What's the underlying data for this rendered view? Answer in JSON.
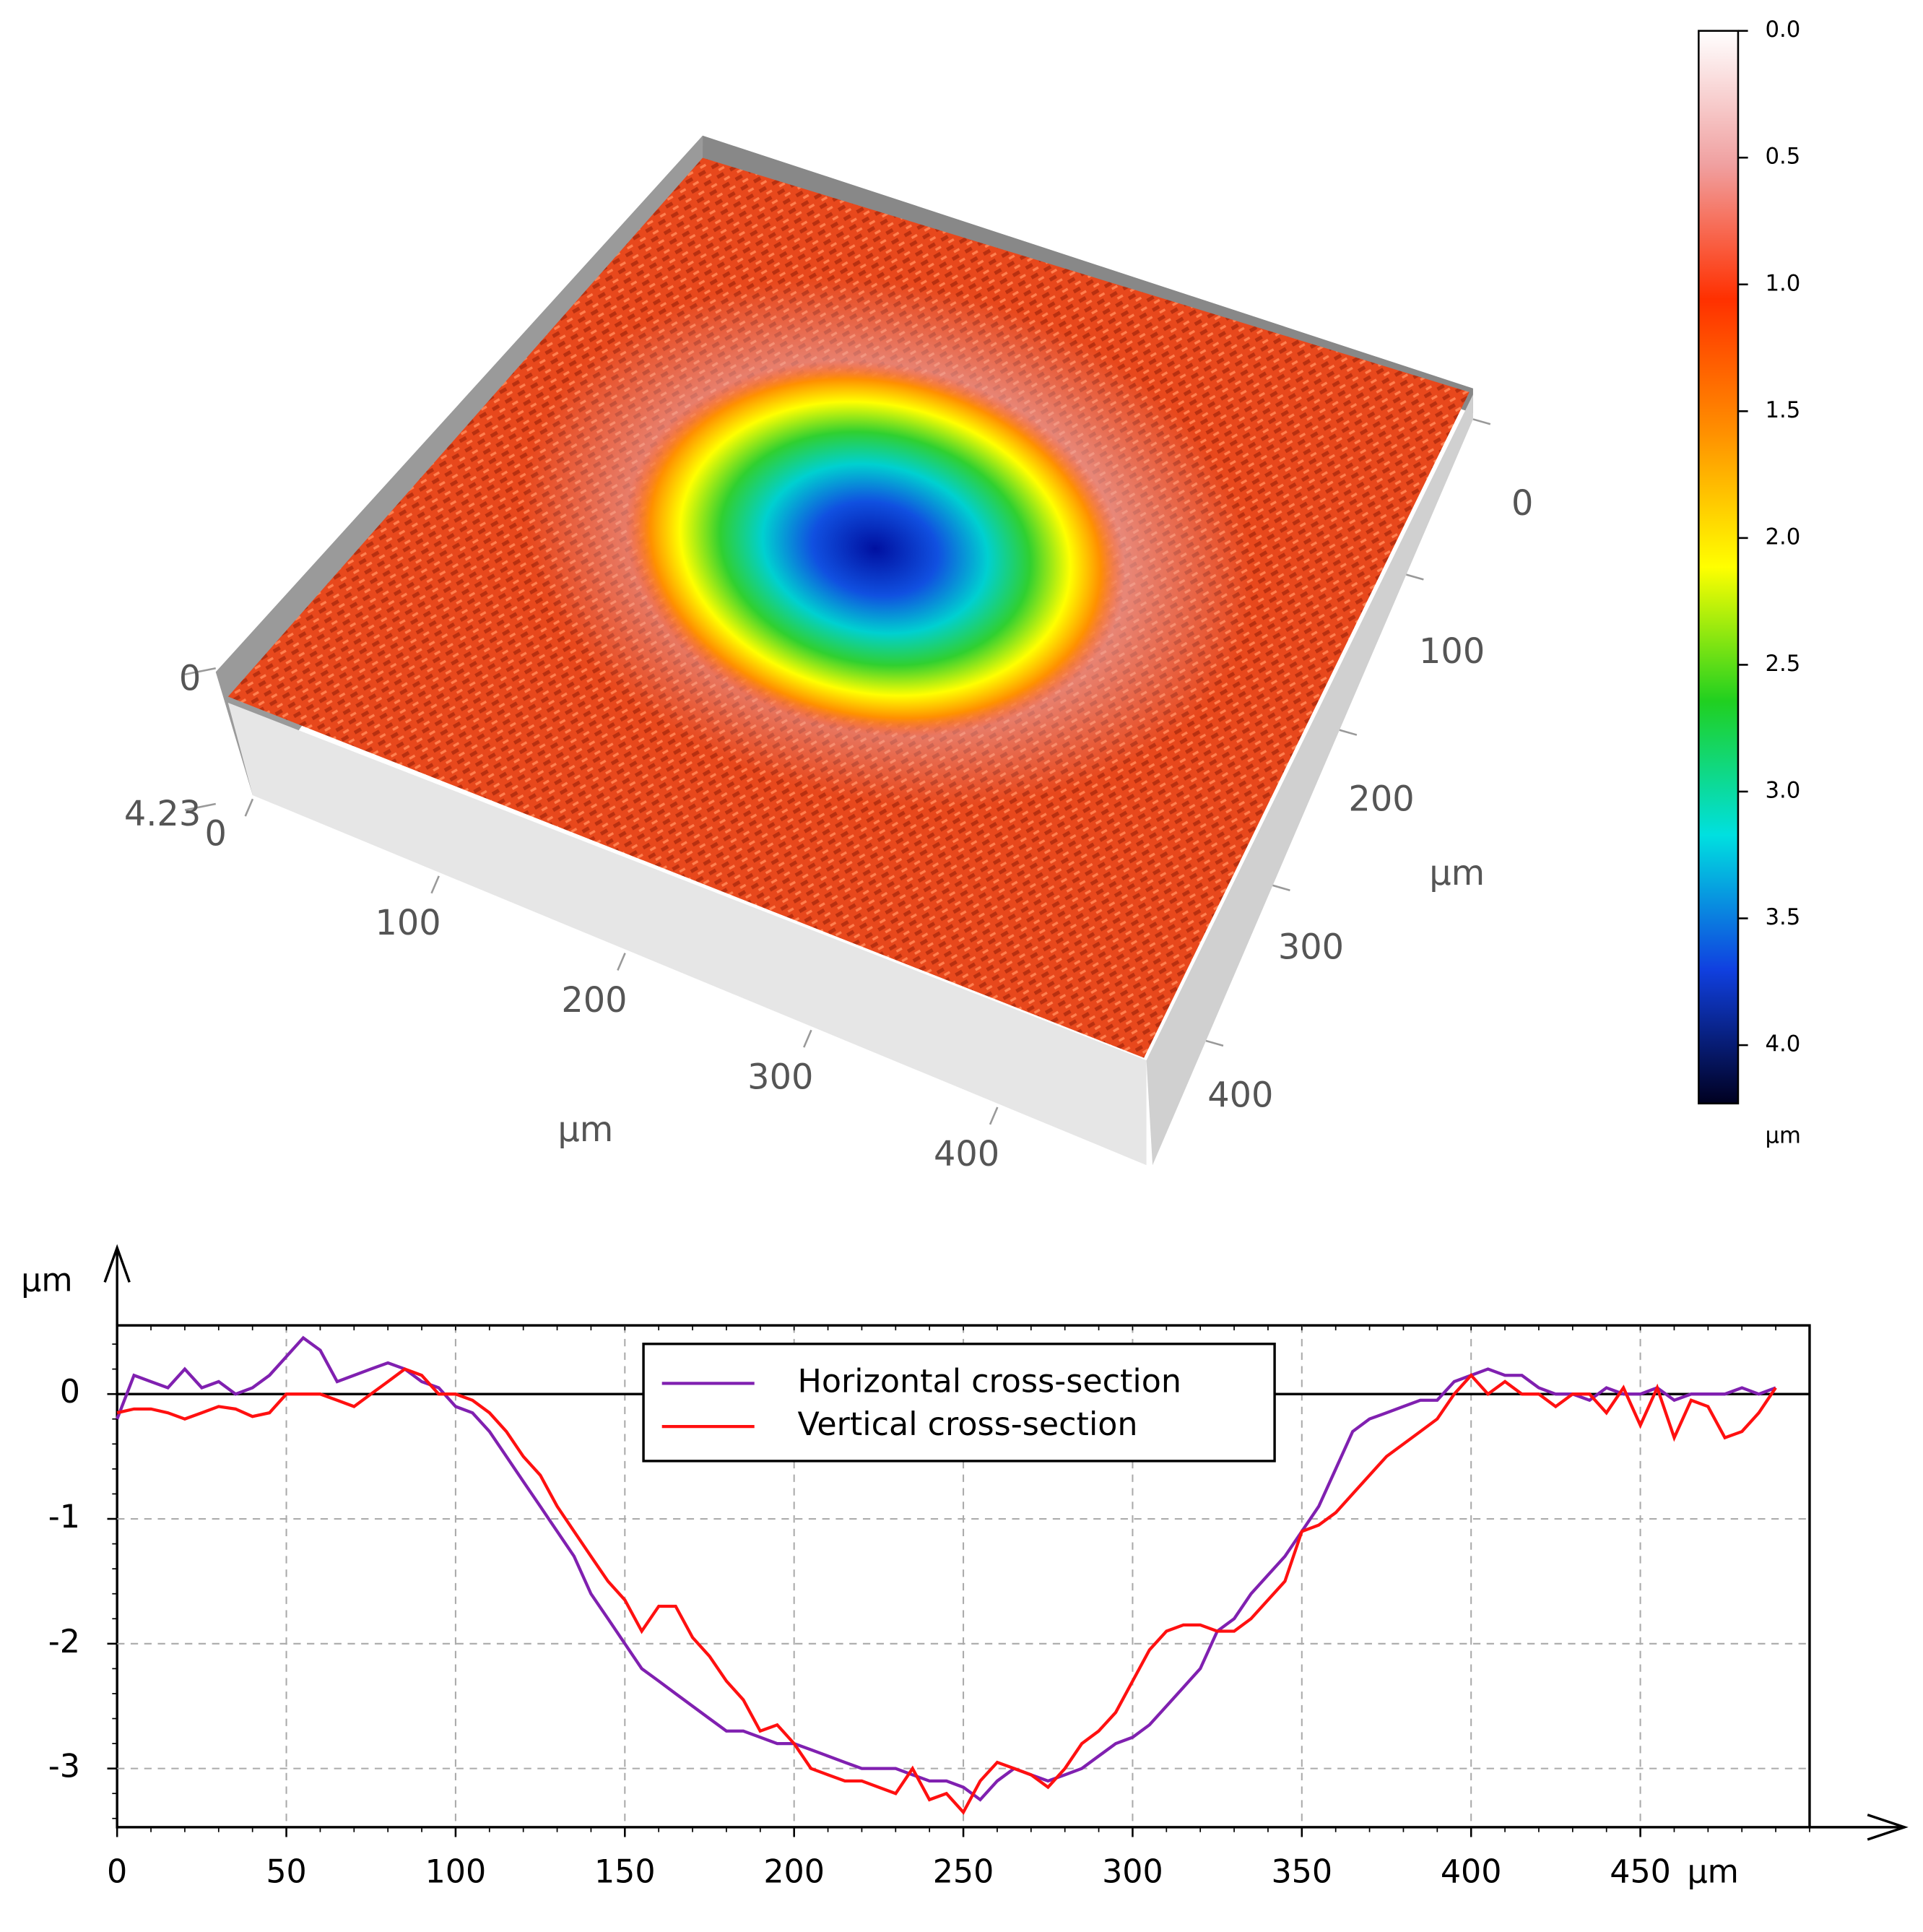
{
  "chart_data": [
    {
      "type": "surface3d",
      "x_label": "µm",
      "xticks": [
        0,
        100,
        200,
        300,
        400
      ],
      "y_label": "µm",
      "yticks": [
        0,
        100,
        200,
        300,
        400
      ],
      "zticks": [
        0,
        4.23
      ],
      "colorbar": {
        "lim": [
          0,
          4.23
        ],
        "label": "µm",
        "ticks": [
          {
            "value": 0,
            "label": "0.0"
          },
          {
            "value": 0.5,
            "label": "0.5"
          },
          {
            "value": 1,
            "label": "1.0"
          },
          {
            "value": 1.5,
            "label": "1.5"
          },
          {
            "value": 2,
            "label": "2.0"
          },
          {
            "value": 2.5,
            "label": "2.5"
          },
          {
            "value": 3,
            "label": "3.0"
          },
          {
            "value": 3.5,
            "label": "3.5"
          },
          {
            "value": 4,
            "label": "4.0"
          }
        ],
        "colors": [
          "#ffffff",
          "#f0a0a0",
          "#ff3000",
          "#ff9000",
          "#ffff00",
          "#20d020",
          "#00e0e0",
          "#1040e0",
          "#000020"
        ]
      }
    },
    {
      "type": "line",
      "y_label": "µm",
      "x_label": "µm",
      "xlim": [
        0,
        500
      ],
      "ylim": [
        -3.47,
        0.55
      ],
      "xticks": [
        0,
        50,
        100,
        150,
        200,
        250,
        300,
        350,
        400,
        450
      ],
      "yticks": [
        0,
        -1,
        -2,
        -3
      ],
      "grid": true,
      "legend": "top",
      "x": [
        0,
        5,
        10,
        15,
        20,
        25,
        30,
        35,
        40,
        45,
        50,
        55,
        60,
        65,
        70,
        75,
        80,
        85,
        90,
        95,
        100,
        105,
        110,
        115,
        120,
        125,
        130,
        135,
        140,
        145,
        150,
        155,
        160,
        165,
        170,
        175,
        180,
        185,
        190,
        195,
        200,
        205,
        210,
        215,
        220,
        225,
        230,
        235,
        240,
        245,
        250,
        255,
        260,
        265,
        270,
        275,
        280,
        285,
        290,
        295,
        300,
        305,
        310,
        315,
        320,
        325,
        330,
        335,
        340,
        345,
        350,
        355,
        360,
        365,
        370,
        375,
        380,
        385,
        390,
        395,
        400,
        405,
        410,
        415,
        420,
        425,
        430,
        435,
        440,
        445,
        450,
        455,
        460,
        465,
        470,
        475,
        480,
        485,
        490
      ],
      "series": [
        {
          "name": "Horizontal cross-section",
          "color": "#8020b0",
          "values": [
            -0.2,
            0.15,
            0.1,
            0.05,
            0.2,
            0.05,
            0.1,
            0.0,
            0.05,
            0.15,
            0.3,
            0.45,
            0.35,
            0.1,
            0.15,
            0.2,
            0.25,
            0.2,
            0.1,
            0.05,
            -0.1,
            -0.15,
            -0.3,
            -0.5,
            -0.7,
            -0.9,
            -1.1,
            -1.3,
            -1.6,
            -1.8,
            -2.0,
            -2.2,
            -2.3,
            -2.4,
            -2.5,
            -2.6,
            -2.7,
            -2.7,
            -2.75,
            -2.8,
            -2.8,
            -2.85,
            -2.9,
            -2.95,
            -3.0,
            -3.0,
            -3.0,
            -3.05,
            -3.1,
            -3.1,
            -3.15,
            -3.25,
            -3.1,
            -3.0,
            -3.05,
            -3.1,
            -3.05,
            -3.0,
            -2.9,
            -2.8,
            -2.75,
            -2.65,
            -2.5,
            -2.35,
            -2.2,
            -1.9,
            -1.8,
            -1.6,
            -1.45,
            -1.3,
            -1.1,
            -0.9,
            -0.6,
            -0.3,
            -0.2,
            -0.15,
            -0.1,
            -0.05,
            -0.05,
            0.1,
            0.15,
            0.2,
            0.15,
            0.15,
            0.05,
            0.0,
            0.0,
            -0.05,
            0.05,
            0.0,
            0.0,
            0.05,
            -0.05,
            0.0,
            0.0,
            0.0,
            0.05,
            0.0,
            0.05
          ]
        },
        {
          "name": "Vertical cross-section",
          "color": "#ff1010",
          "values": [
            -0.15,
            -0.12,
            -0.12,
            -0.15,
            -0.2,
            -0.15,
            -0.1,
            -0.12,
            -0.18,
            -0.15,
            0.0,
            0.0,
            0.0,
            -0.05,
            -0.1,
            0.0,
            0.1,
            0.2,
            0.15,
            0.0,
            0.0,
            -0.05,
            -0.15,
            -0.3,
            -0.5,
            -0.65,
            -0.9,
            -1.1,
            -1.3,
            -1.5,
            -1.65,
            -1.9,
            -1.7,
            -1.7,
            -1.95,
            -2.1,
            -2.3,
            -2.45,
            -2.7,
            -2.65,
            -2.8,
            -3.0,
            -3.05,
            -3.1,
            -3.1,
            -3.15,
            -3.2,
            -3.0,
            -3.25,
            -3.2,
            -3.35,
            -3.1,
            -2.95,
            -3.0,
            -3.05,
            -3.15,
            -3.0,
            -2.8,
            -2.7,
            -2.55,
            -2.3,
            -2.05,
            -1.9,
            -1.85,
            -1.85,
            -1.9,
            -1.9,
            -1.8,
            -1.65,
            -1.5,
            -1.1,
            -1.05,
            -0.95,
            -0.8,
            -0.65,
            -0.5,
            -0.4,
            -0.3,
            -0.2,
            0.0,
            0.15,
            0.0,
            0.1,
            0.0,
            0.0,
            -0.1,
            0.0,
            0.0,
            -0.15,
            0.05,
            -0.25,
            0.05,
            -0.35,
            -0.05,
            -0.1,
            -0.35,
            -0.3,
            -0.15,
            0.05
          ]
        }
      ]
    }
  ]
}
